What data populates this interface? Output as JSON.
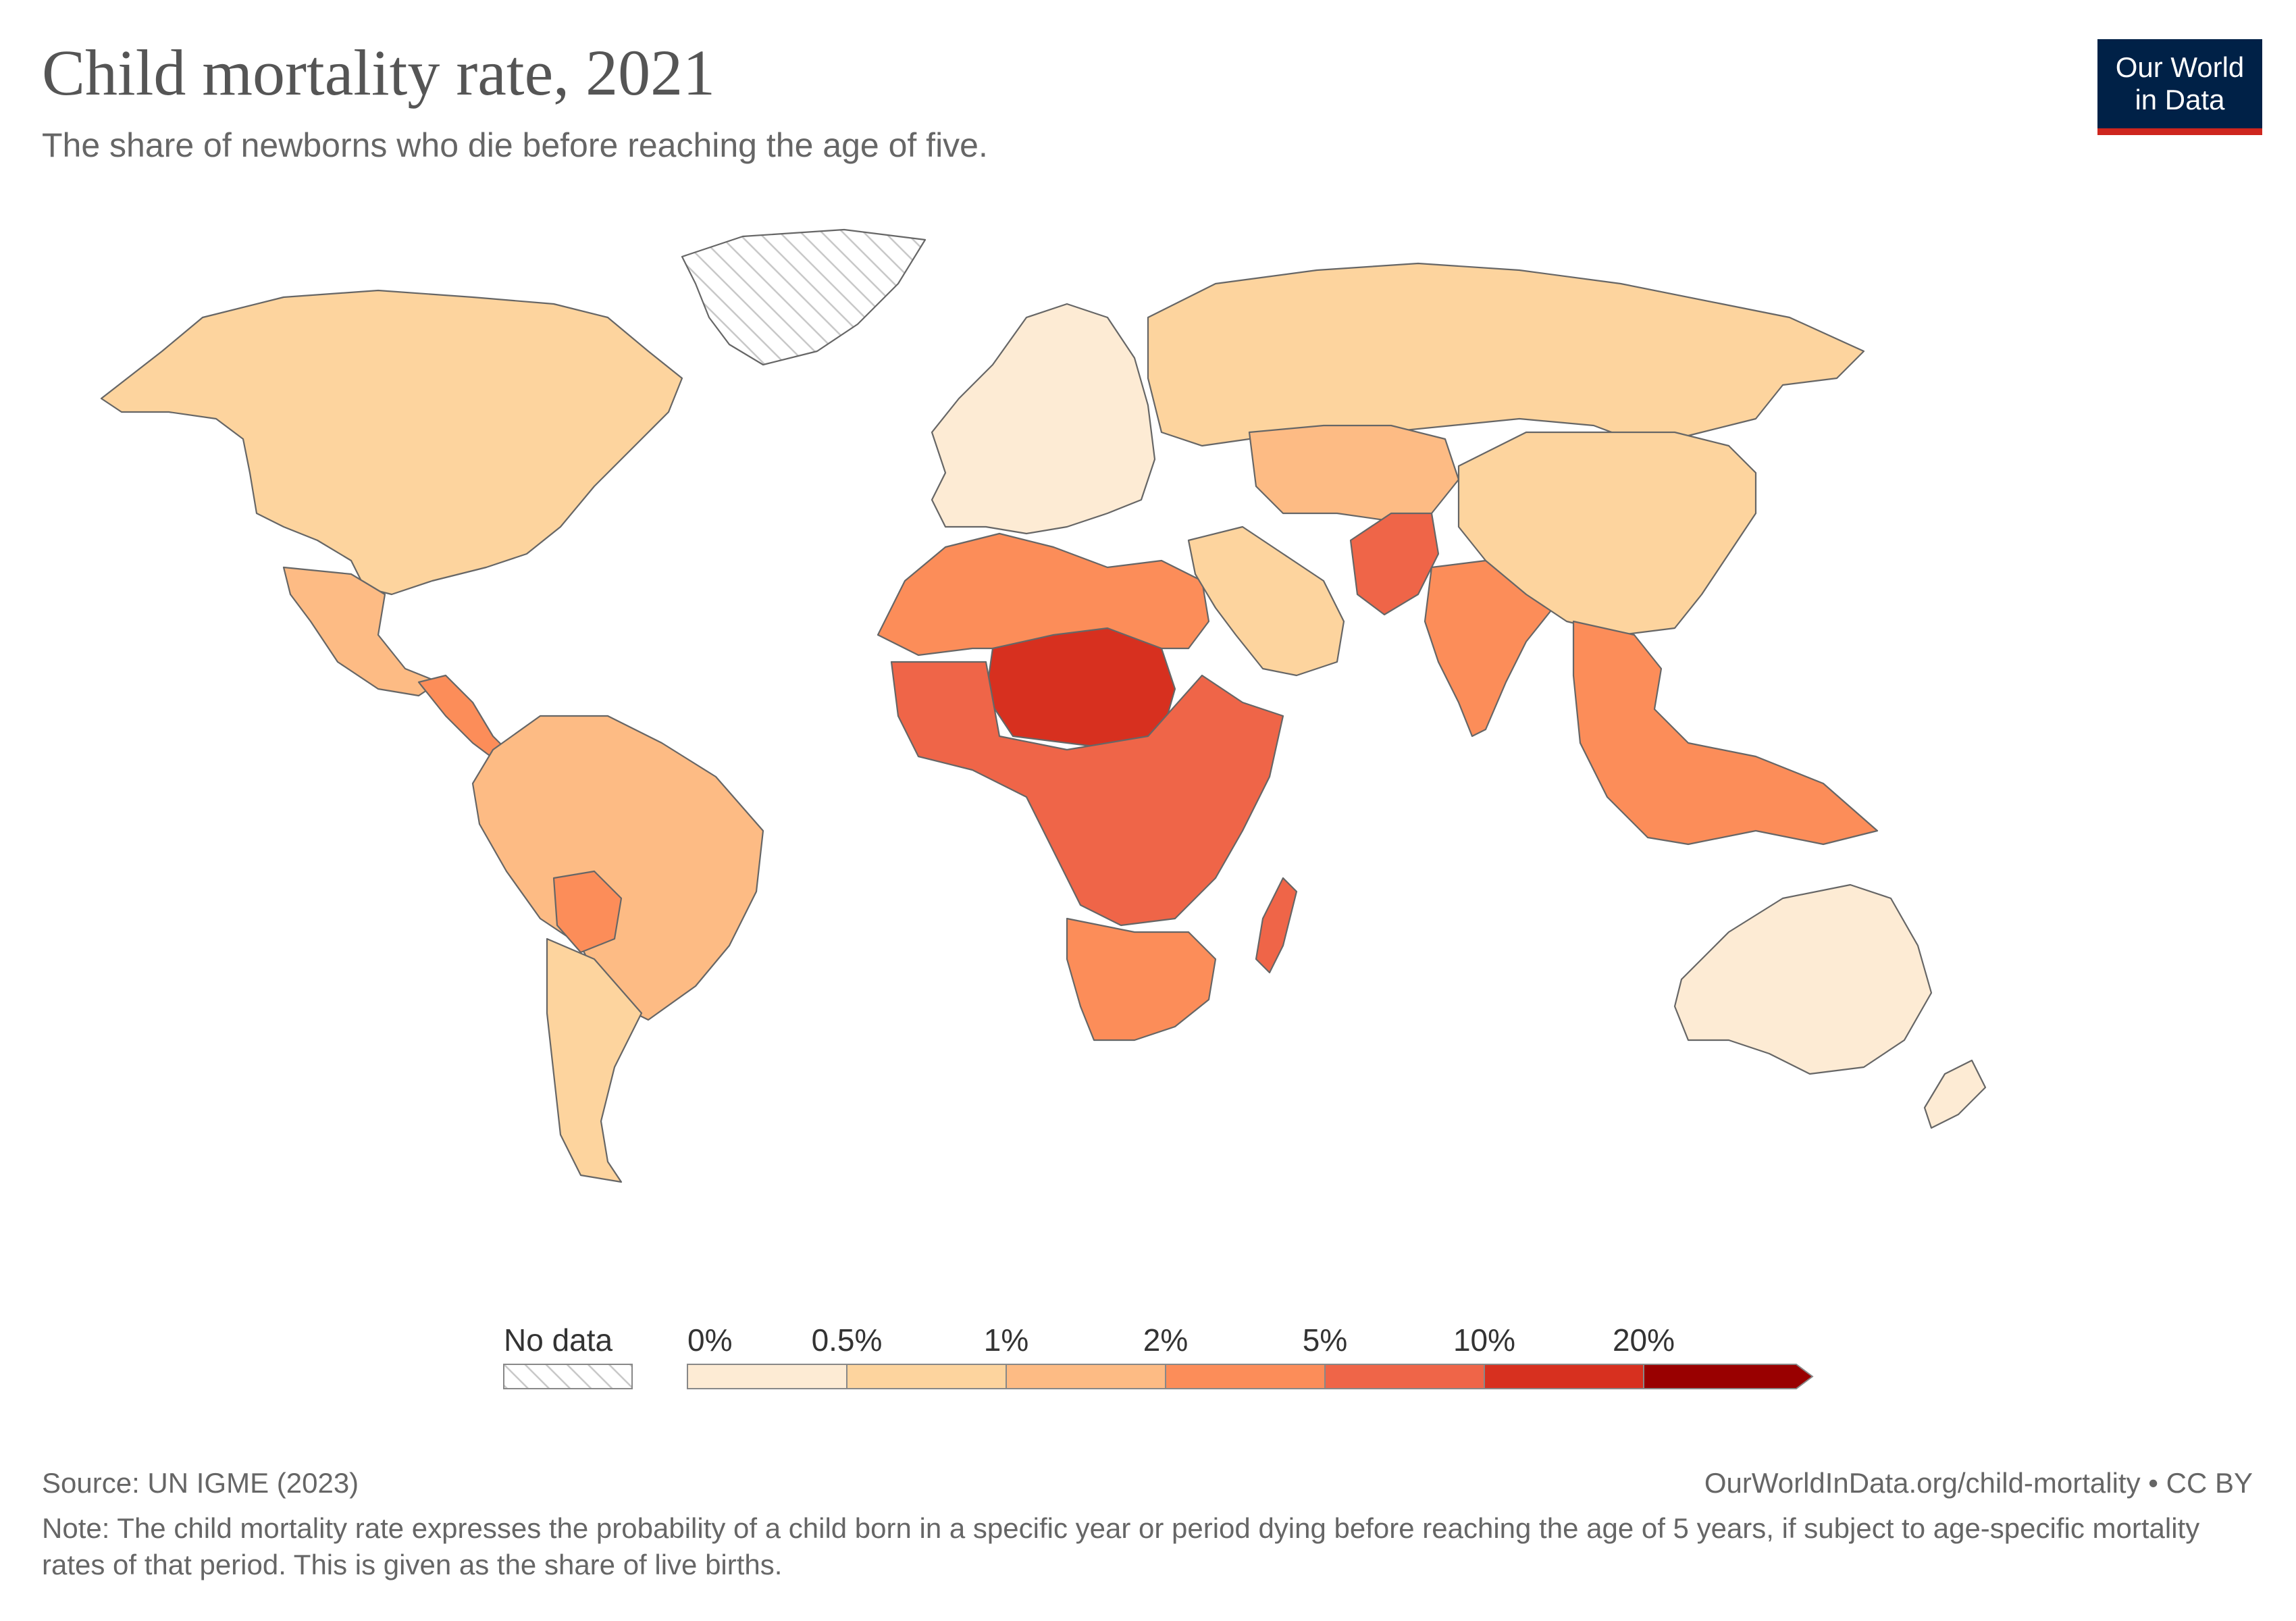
{
  "header": {
    "title": "Child mortality rate, 2021",
    "subtitle": "The share of newborns who die before reaching the age of five."
  },
  "logo": {
    "line1": "Our World",
    "line2": "in Data",
    "background": "#002147",
    "accent": "#ce261e"
  },
  "legend": {
    "no_data_label": "No data",
    "bins": [
      {
        "label": "0%",
        "color": "#fdebd4"
      },
      {
        "label": "0.5%",
        "color": "#fdd49e"
      },
      {
        "label": "1%",
        "color": "#fdbb84"
      },
      {
        "label": "2%",
        "color": "#fc8d59"
      },
      {
        "label": "5%",
        "color": "#ef6548"
      },
      {
        "label": "10%",
        "color": "#d7301f"
      },
      {
        "label": "20%",
        "color": "#990000"
      }
    ]
  },
  "regions": [
    {
      "name": "North America",
      "bin": 1
    },
    {
      "name": "Greenland",
      "bin": null
    },
    {
      "name": "Mexico",
      "bin": 2
    },
    {
      "name": "Central America",
      "bin": 3
    },
    {
      "name": "South America",
      "bin": 2
    },
    {
      "name": "Southern Cone",
      "bin": 1
    },
    {
      "name": "Bolivia",
      "bin": 3
    },
    {
      "name": "Europe",
      "bin": 0
    },
    {
      "name": "Russia",
      "bin": 1
    },
    {
      "name": "North Africa",
      "bin": 3
    },
    {
      "name": "Sahel",
      "bin": 5
    },
    {
      "name": "Central Africa",
      "bin": 4
    },
    {
      "name": "Southern Africa",
      "bin": 3
    },
    {
      "name": "Middle East",
      "bin": 1
    },
    {
      "name": "Central Asia",
      "bin": 2
    },
    {
      "name": "Pakistan",
      "bin": 4
    },
    {
      "name": "India",
      "bin": 3
    },
    {
      "name": "China",
      "bin": 1
    },
    {
      "name": "Southeast Asia",
      "bin": 3
    },
    {
      "name": "Australia",
      "bin": 0
    }
  ],
  "footer": {
    "source": "Source: UN IGME (2023)",
    "attribution": "OurWorldInData.org/child-mortality • CC BY",
    "note": "Note: The child mortality rate expresses the probability of a child born in a specific year or period dying before reaching the age of 5 years, if subject to age-specific mortality rates of that period. This is given as the share of live births."
  }
}
